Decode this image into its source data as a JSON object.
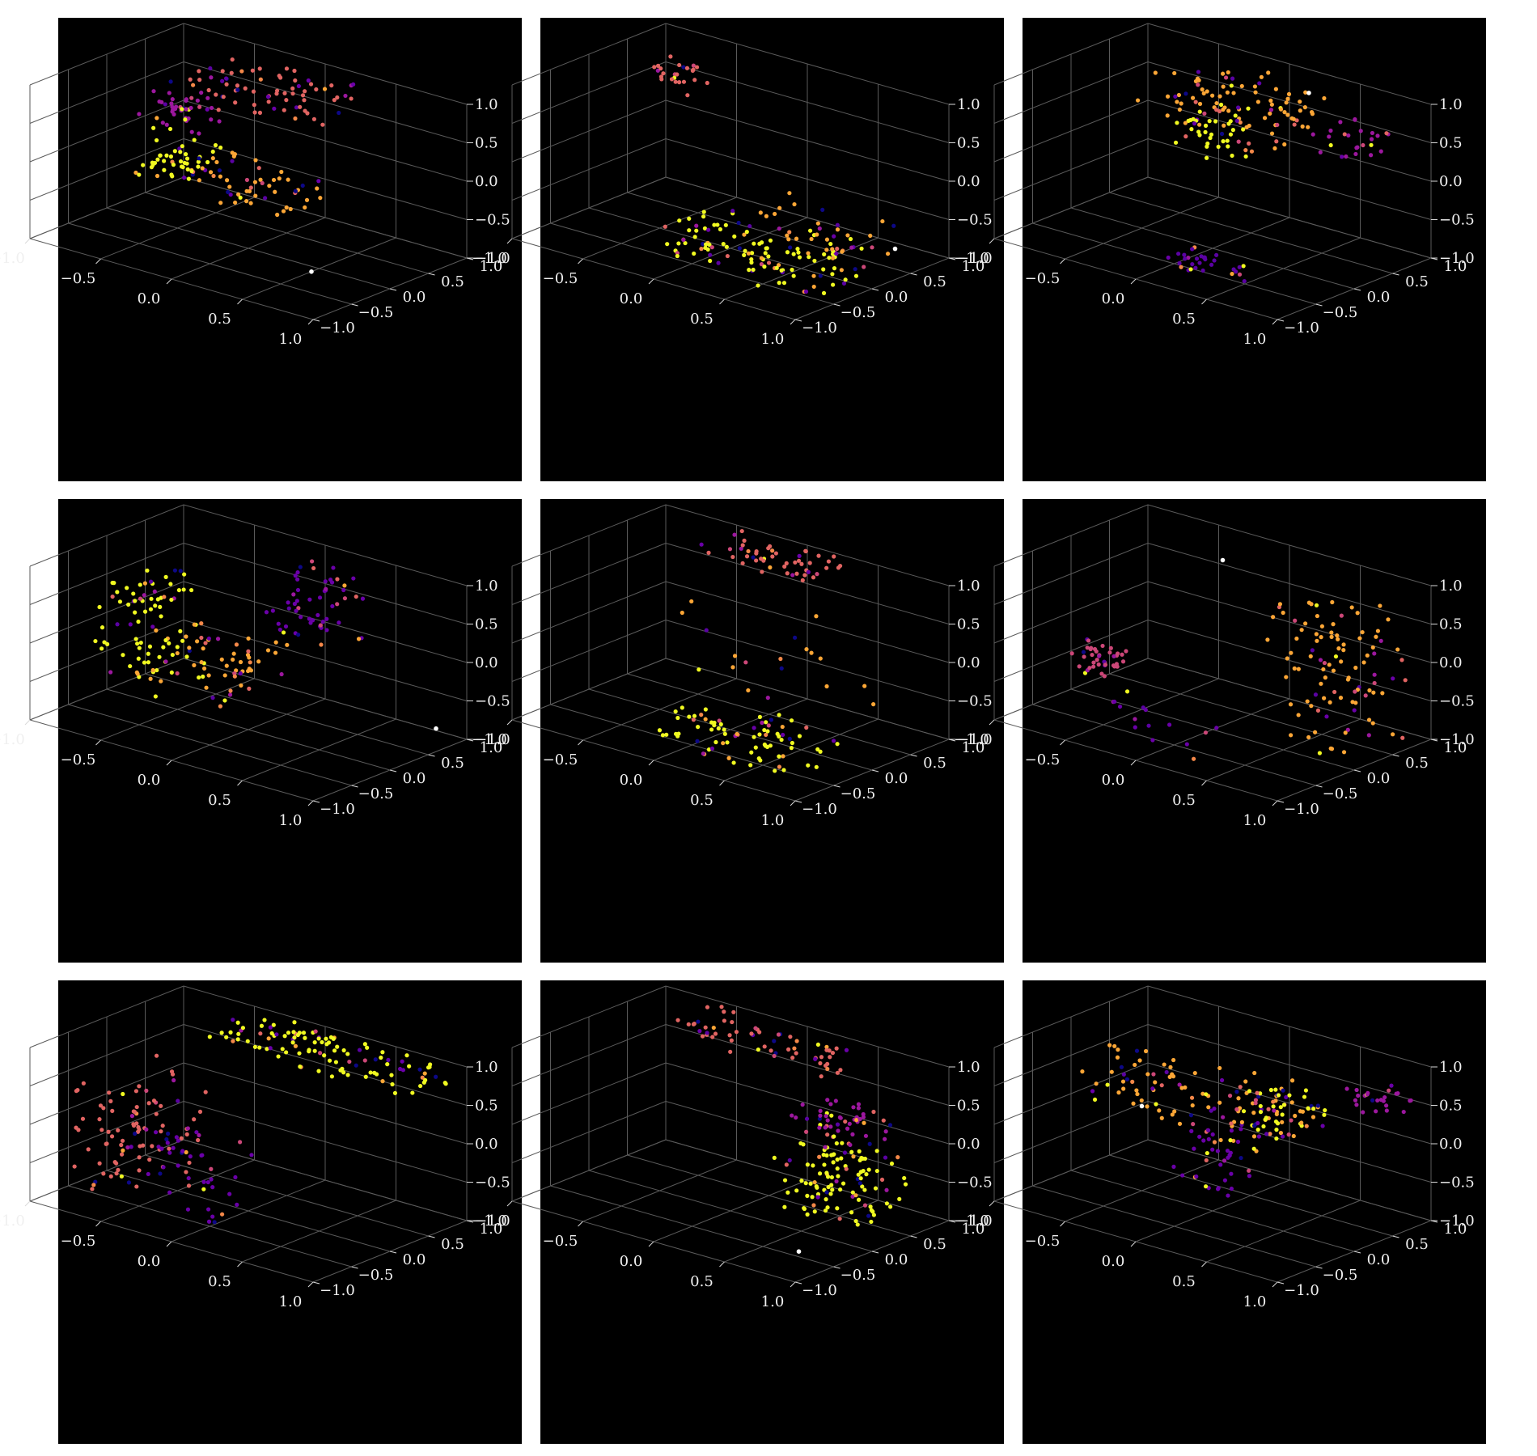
{
  "chart_data": [
    {
      "type": "scatter3d",
      "panel": 1,
      "view_elev_deg": 30,
      "view_azim_deg": -60,
      "xlim": [
        -1,
        1
      ],
      "ylim": [
        -1,
        1
      ],
      "zlim": [
        -1,
        1
      ],
      "grid": true,
      "background": "#000000",
      "colormap": "plasma",
      "marker_size": "small",
      "clusters": [
        {
          "desc": "arc near top",
          "points": 70,
          "x": [
            -0.6,
            0.3
          ],
          "y": [
            0.2,
            0.9
          ],
          "z": [
            0.55,
            0.95
          ],
          "color": "#e16462"
        },
        {
          "desc": "purple blob",
          "points": 45,
          "x": [
            -0.7,
            -0.3
          ],
          "y": [
            -0.2,
            0.3
          ],
          "z": [
            0.3,
            0.7
          ],
          "color": "#9c179e"
        },
        {
          "desc": "yellow cluster",
          "points": 50,
          "x": [
            -0.6,
            -0.2
          ],
          "y": [
            -0.4,
            0.1
          ],
          "z": [
            -0.2,
            0.2
          ],
          "color": "#f0f921"
        },
        {
          "desc": "orange scatter",
          "points": 50,
          "x": [
            -0.3,
            0.4
          ],
          "y": [
            -0.3,
            0.3
          ],
          "z": [
            -0.4,
            0.1
          ],
          "color": "#fca636"
        }
      ],
      "highlight": {
        "x": 0.5,
        "y": -0.1,
        "z": -1.0,
        "color": "#ffffff"
      }
    },
    {
      "type": "scatter3d",
      "panel": 2,
      "view_elev_deg": 30,
      "view_azim_deg": -60,
      "xlim": [
        -1,
        1
      ],
      "ylim": [
        -1,
        1
      ],
      "zlim": [
        -1,
        1
      ],
      "grid": true,
      "background": "#000000",
      "colormap": "plasma",
      "clusters": [
        {
          "desc": "small group upper left",
          "points": 25,
          "x": [
            -0.9,
            -0.6
          ],
          "y": [
            0.5,
            0.9
          ],
          "z": [
            0.4,
            0.7
          ],
          "color": "#e16462"
        },
        {
          "desc": "floor arc",
          "points": 110,
          "x": [
            -0.3,
            0.9
          ],
          "y": [
            -0.6,
            0.4
          ],
          "z": [
            -1.0,
            -0.7
          ],
          "color": "#f0f921"
        },
        {
          "desc": "sparse orange",
          "points": 40,
          "x": [
            0.1,
            0.9
          ],
          "y": [
            -0.3,
            0.6
          ],
          "z": [
            -0.9,
            -0.3
          ],
          "color": "#fca636"
        }
      ],
      "highlight": {
        "x": 1.0,
        "y": 0.3,
        "z": -0.6,
        "color": "#ffffff"
      }
    },
    {
      "type": "scatter3d",
      "panel": 3,
      "view_elev_deg": 30,
      "view_azim_deg": -60,
      "xlim": [
        -1,
        1
      ],
      "ylim": [
        -1,
        1
      ],
      "zlim": [
        -1,
        1
      ],
      "grid": true,
      "background": "#000000",
      "colormap": "plasma",
      "clusters": [
        {
          "desc": "upper arc",
          "points": 90,
          "x": [
            -0.6,
            0.4
          ],
          "y": [
            0.1,
            0.9
          ],
          "z": [
            0.4,
            0.9
          ],
          "color": "#fca636"
        },
        {
          "desc": "yellow cluster",
          "points": 40,
          "x": [
            -0.3,
            0.1
          ],
          "y": [
            0.0,
            0.4
          ],
          "z": [
            0.1,
            0.6
          ],
          "color": "#f0f921"
        },
        {
          "desc": "right purple",
          "points": 25,
          "x": [
            0.5,
            0.9
          ],
          "y": [
            0.3,
            0.8
          ],
          "z": [
            0.4,
            0.7
          ],
          "color": "#9c179e"
        },
        {
          "desc": "floor streak",
          "points": 30,
          "x": [
            0.0,
            0.5
          ],
          "y": [
            -0.6,
            -0.3
          ],
          "z": [
            -1.0,
            -0.8
          ],
          "color": "#5b02a3"
        }
      ],
      "highlight": {
        "x": 0.3,
        "y": 0.7,
        "z": 0.9,
        "color": "#ffffff"
      }
    },
    {
      "type": "scatter3d",
      "panel": 4,
      "view_elev_deg": 30,
      "view_azim_deg": -60,
      "xlim": [
        -1,
        1
      ],
      "ylim": [
        -1,
        1
      ],
      "zlim": [
        -1,
        1
      ],
      "grid": true,
      "background": "#000000",
      "colormap": "plasma",
      "clusters": [
        {
          "desc": "left arc",
          "points": 80,
          "x": [
            -0.9,
            -0.5
          ],
          "y": [
            -0.4,
            0.4
          ],
          "z": [
            -0.6,
            0.6
          ],
          "color": "#f0f921"
        },
        {
          "desc": "purple group",
          "points": 55,
          "x": [
            -0.1,
            0.4
          ],
          "y": [
            0.3,
            0.9
          ],
          "z": [
            0.0,
            0.9
          ],
          "color": "#6a00a8"
        },
        {
          "desc": "orange scatter",
          "points": 60,
          "x": [
            -0.6,
            0.2
          ],
          "y": [
            -0.5,
            0.2
          ],
          "z": [
            -0.6,
            0.2
          ],
          "color": "#fca636"
        }
      ],
      "highlight": {
        "x": 1.0,
        "y": 0.6,
        "z": -0.7,
        "color": "#ffffff"
      }
    },
    {
      "type": "scatter3d",
      "panel": 5,
      "view_elev_deg": 30,
      "view_azim_deg": -60,
      "xlim": [
        -1,
        1
      ],
      "ylim": [
        -1,
        1
      ],
      "zlim": [
        -1,
        1
      ],
      "grid": true,
      "background": "#000000",
      "colormap": "plasma",
      "clusters": [
        {
          "desc": "top arc",
          "points": 50,
          "x": [
            -0.5,
            0.3
          ],
          "y": [
            0.5,
            1.0
          ],
          "z": [
            0.8,
            1.0
          ],
          "color": "#e16462"
        },
        {
          "desc": "floor arc",
          "points": 80,
          "x": [
            -0.2,
            0.8
          ],
          "y": [
            -0.7,
            0.1
          ],
          "z": [
            -1.0,
            -0.6
          ],
          "color": "#f0f921"
        },
        {
          "desc": "sparse points",
          "points": 20,
          "x": [
            -0.5,
            0.8
          ],
          "y": [
            -0.4,
            0.7
          ],
          "z": [
            -0.8,
            0.6
          ],
          "color": "#fca636"
        }
      ]
    },
    {
      "type": "scatter3d",
      "panel": 6,
      "view_elev_deg": 30,
      "view_azim_deg": -60,
      "xlim": [
        -1,
        1
      ],
      "ylim": [
        -1,
        1
      ],
      "zlim": [
        -1,
        1
      ],
      "grid": true,
      "background": "#000000",
      "colormap": "plasma",
      "clusters": [
        {
          "desc": "right arc",
          "points": 100,
          "x": [
            0.4,
            1.0
          ],
          "y": [
            -0.2,
            0.8
          ],
          "z": [
            -0.9,
            0.9
          ],
          "color": "#fca636"
        },
        {
          "desc": "left purple blob",
          "points": 40,
          "x": [
            -0.9,
            -0.6
          ],
          "y": [
            -0.3,
            0.1
          ],
          "z": [
            -0.6,
            -0.3
          ],
          "color": "#cc4778"
        },
        {
          "desc": "sparse floor",
          "points": 15,
          "x": [
            -0.6,
            0.5
          ],
          "y": [
            -0.8,
            0.0
          ],
          "z": [
            -1.0,
            -0.8
          ],
          "color": "#6a00a8"
        }
      ],
      "highlight": {
        "x": -0.2,
        "y": 0.5,
        "z": 0.9,
        "color": "#ffffff"
      }
    },
    {
      "type": "scatter3d",
      "panel": 7,
      "view_elev_deg": 30,
      "view_azim_deg": -60,
      "xlim": [
        -1,
        1
      ],
      "ylim": [
        -1,
        1
      ],
      "zlim": [
        -1,
        1
      ],
      "grid": true,
      "background": "#000000",
      "colormap": "plasma",
      "clusters": [
        {
          "desc": "top arc",
          "points": 110,
          "x": [
            -0.5,
            1.0
          ],
          "y": [
            0.3,
            1.0
          ],
          "z": [
            0.8,
            1.0
          ],
          "color": "#f0f921"
        },
        {
          "desc": "left descending arc",
          "points": 90,
          "x": [
            -0.9,
            -0.4
          ],
          "y": [
            -0.8,
            0.3
          ],
          "z": [
            -0.9,
            0.5
          ],
          "color": "#e16462"
        },
        {
          "desc": "purple interior",
          "points": 40,
          "x": [
            -0.5,
            0.1
          ],
          "y": [
            -0.7,
            0.0
          ],
          "z": [
            -0.9,
            0.0
          ],
          "color": "#6a00a8"
        }
      ]
    },
    {
      "type": "scatter3d",
      "panel": 8,
      "view_elev_deg": 30,
      "view_azim_deg": -60,
      "xlim": [
        -1,
        1
      ],
      "ylim": [
        -1,
        1
      ],
      "zlim": [
        -1,
        1
      ],
      "grid": true,
      "background": "#000000",
      "colormap": "plasma",
      "clusters": [
        {
          "desc": "top arc",
          "points": 60,
          "x": [
            -0.7,
            0.4
          ],
          "y": [
            0.5,
            1.0
          ],
          "z": [
            0.7,
            1.0
          ],
          "color": "#e16462"
        },
        {
          "desc": "right dense group",
          "points": 120,
          "x": [
            0.4,
            1.0
          ],
          "y": [
            -0.2,
            0.6
          ],
          "z": [
            -0.8,
            0.3
          ],
          "color": "#f0f921"
        },
        {
          "desc": "purple patch",
          "points": 40,
          "x": [
            0.3,
            0.8
          ],
          "y": [
            0.2,
            0.7
          ],
          "z": [
            0.1,
            0.5
          ],
          "color": "#9c179e"
        }
      ],
      "highlight": {
        "x": 0.7,
        "y": -0.4,
        "z": -1.0,
        "color": "#ffffff"
      }
    },
    {
      "type": "scatter3d",
      "panel": 9,
      "view_elev_deg": 30,
      "view_azim_deg": -60,
      "xlim": [
        -1,
        1
      ],
      "ylim": [
        -1,
        1
      ],
      "zlim": [
        -1,
        1
      ],
      "grid": true,
      "background": "#000000",
      "colormap": "plasma",
      "clusters": [
        {
          "desc": "broad orange band",
          "points": 100,
          "x": [
            -0.9,
            0.5
          ],
          "y": [
            -0.2,
            0.6
          ],
          "z": [
            0.0,
            0.7
          ],
          "color": "#fca636"
        },
        {
          "desc": "yellow cluster",
          "points": 50,
          "x": [
            0.1,
            0.6
          ],
          "y": [
            0.0,
            0.5
          ],
          "z": [
            0.1,
            0.6
          ],
          "color": "#f0f921"
        },
        {
          "desc": "purple column",
          "points": 50,
          "x": [
            -0.1,
            0.3
          ],
          "y": [
            -0.4,
            0.1
          ],
          "z": [
            -0.6,
            0.3
          ],
          "color": "#6a00a8"
        },
        {
          "desc": "right magenta streak",
          "points": 25,
          "x": [
            0.6,
            1.0
          ],
          "y": [
            0.4,
            0.9
          ],
          "z": [
            0.5,
            0.8
          ],
          "color": "#9c179e"
        }
      ],
      "highlight": {
        "x": -0.5,
        "y": 0.0,
        "z": 0.1,
        "color": "#ffffff"
      }
    }
  ],
  "tick_labels": {
    "x": [
      "−1.0",
      "−0.5",
      "0.0",
      "0.5",
      "1.0"
    ],
    "y": [
      "−1.0",
      "−0.5",
      "0.0",
      "0.5",
      "1.0"
    ],
    "z": [
      "−1.0",
      "−0.5",
      "0.0",
      "0.5",
      "1.0"
    ]
  },
  "palette": [
    "#0d0887",
    "#5b02a3",
    "#6a00a8",
    "#9c179e",
    "#cc4778",
    "#e16462",
    "#f48849",
    "#fca636",
    "#f0f921"
  ]
}
